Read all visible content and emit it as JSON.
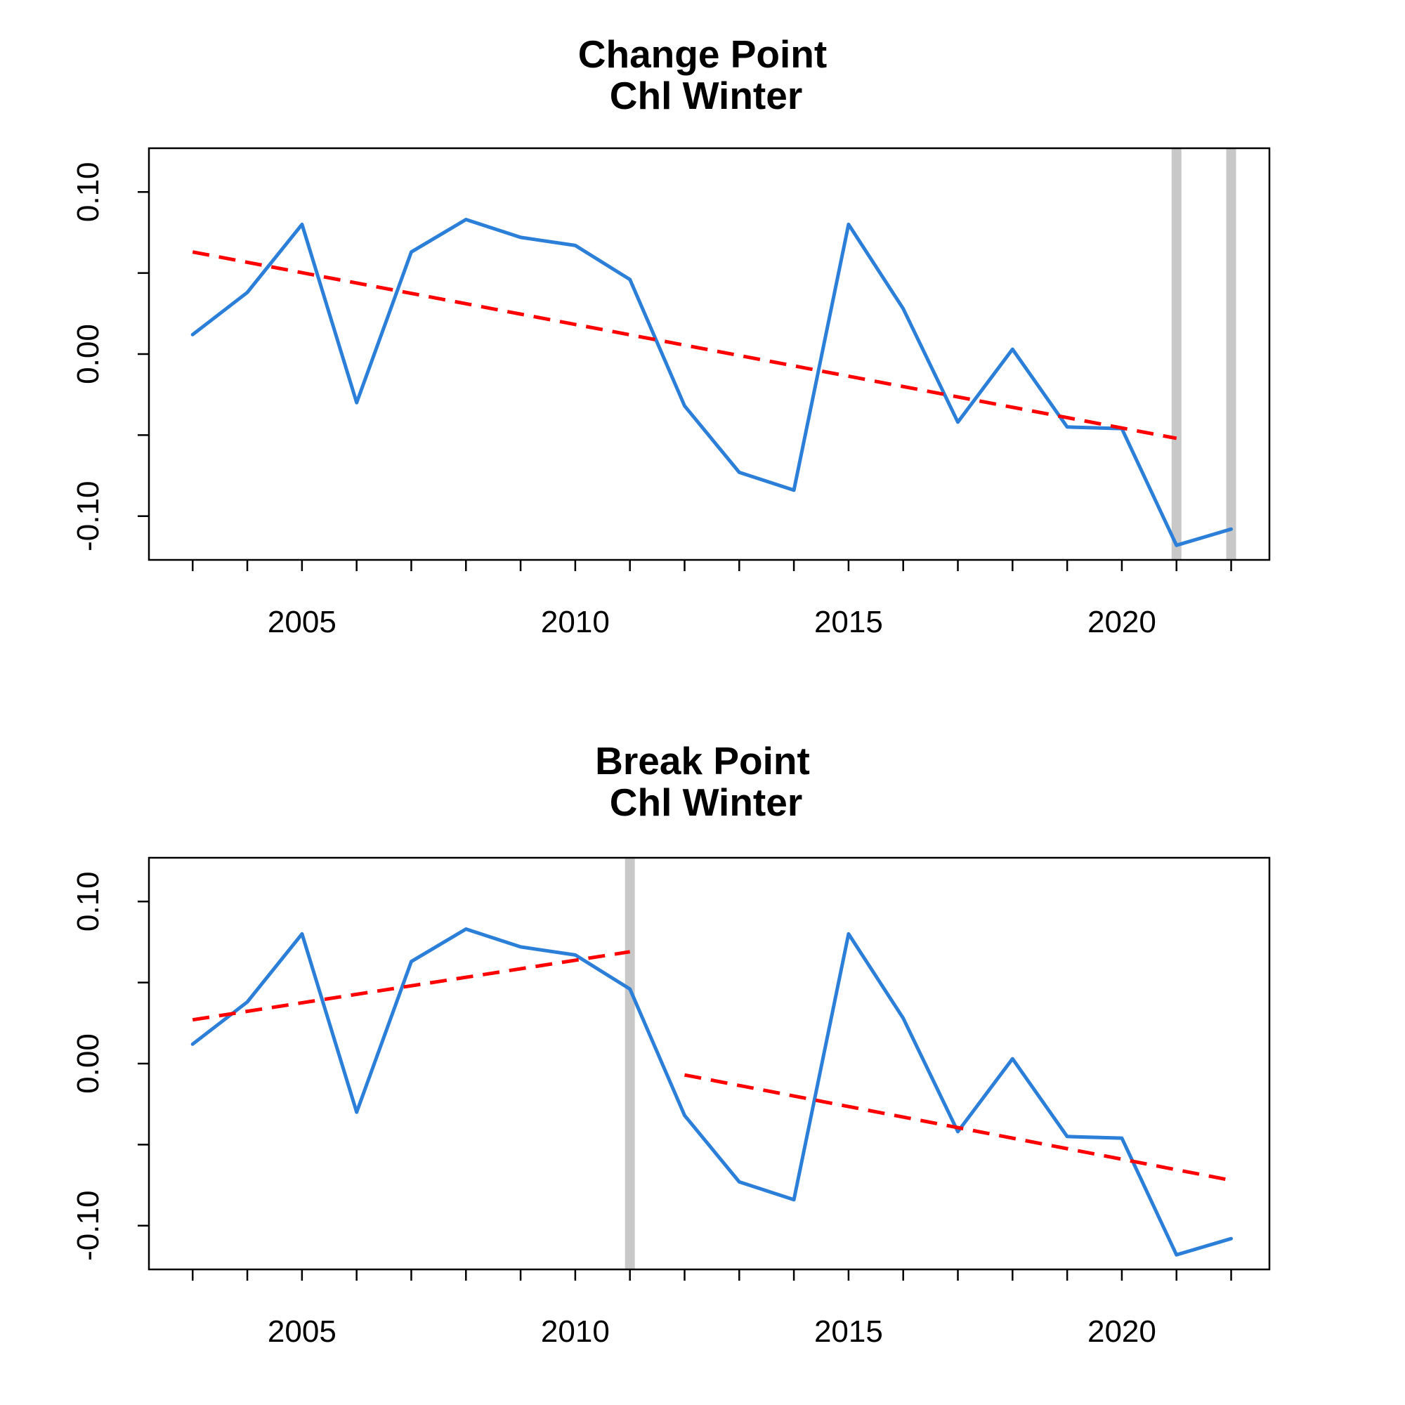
{
  "chart_data": [
    {
      "type": "line",
      "title": "Change Point",
      "subtitle": "Chl Winter",
      "xlabel": "",
      "ylabel": "",
      "xlim": [
        2002.2,
        2022.7
      ],
      "ylim": [
        -0.127,
        0.127
      ],
      "x_ticks": [
        2003,
        2004,
        2005,
        2006,
        2007,
        2008,
        2009,
        2010,
        2011,
        2012,
        2013,
        2014,
        2015,
        2016,
        2017,
        2018,
        2019,
        2020,
        2021,
        2022
      ],
      "x_tick_labels": [
        {
          "value": 2005,
          "label": "2005"
        },
        {
          "value": 2010,
          "label": "2010"
        },
        {
          "value": 2015,
          "label": "2015"
        },
        {
          "value": 2020,
          "label": "2020"
        }
      ],
      "y_ticks": [
        -0.1,
        -0.05,
        0.0,
        0.05,
        0.1
      ],
      "y_tick_labels": [
        {
          "value": -0.1,
          "label": "-0.10"
        },
        {
          "value": 0.0,
          "label": "0.00"
        },
        {
          "value": 0.1,
          "label": "0.10"
        }
      ],
      "grid": false,
      "series": [
        {
          "color": "#2b7fd8",
          "style": "solid",
          "x": [
            2003,
            2004,
            2005,
            2006,
            2007,
            2008,
            2009,
            2010,
            2011,
            2012,
            2013,
            2014,
            2015,
            2016,
            2017,
            2018,
            2019,
            2020,
            2021,
            2022
          ],
          "y": [
            0.012,
            0.038,
            0.08,
            -0.03,
            0.063,
            0.083,
            0.072,
            0.067,
            0.046,
            -0.032,
            -0.073,
            -0.084,
            0.08,
            0.028,
            -0.042,
            0.003,
            -0.045,
            -0.046,
            -0.118,
            -0.108
          ]
        }
      ],
      "trend_lines": [
        {
          "color": "#ff0000",
          "style": "dashed",
          "x": [
            2003,
            2021
          ],
          "y": [
            0.063,
            -0.052
          ]
        }
      ],
      "change_points": [
        2021,
        2022
      ],
      "change_point_color": "#c8c8c8"
    },
    {
      "type": "line",
      "title": "Break Point",
      "subtitle": "Chl Winter",
      "xlabel": "",
      "ylabel": "",
      "xlim": [
        2002.2,
        2022.7
      ],
      "ylim": [
        -0.127,
        0.127
      ],
      "x_ticks": [
        2003,
        2004,
        2005,
        2006,
        2007,
        2008,
        2009,
        2010,
        2011,
        2012,
        2013,
        2014,
        2015,
        2016,
        2017,
        2018,
        2019,
        2020,
        2021,
        2022
      ],
      "x_tick_labels": [
        {
          "value": 2005,
          "label": "2005"
        },
        {
          "value": 2010,
          "label": "2010"
        },
        {
          "value": 2015,
          "label": "2015"
        },
        {
          "value": 2020,
          "label": "2020"
        }
      ],
      "y_ticks": [
        -0.1,
        -0.05,
        0.0,
        0.05,
        0.1
      ],
      "y_tick_labels": [
        {
          "value": -0.1,
          "label": "-0.10"
        },
        {
          "value": 0.0,
          "label": "0.00"
        },
        {
          "value": 0.1,
          "label": "0.10"
        }
      ],
      "grid": false,
      "series": [
        {
          "color": "#2b7fd8",
          "style": "solid",
          "x": [
            2003,
            2004,
            2005,
            2006,
            2007,
            2008,
            2009,
            2010,
            2011,
            2012,
            2013,
            2014,
            2015,
            2016,
            2017,
            2018,
            2019,
            2020,
            2021,
            2022
          ],
          "y": [
            0.012,
            0.038,
            0.08,
            -0.03,
            0.063,
            0.083,
            0.072,
            0.067,
            0.046,
            -0.032,
            -0.073,
            -0.084,
            0.08,
            0.028,
            -0.042,
            0.003,
            -0.045,
            -0.046,
            -0.118,
            -0.108
          ]
        }
      ],
      "trend_lines": [
        {
          "color": "#ff0000",
          "style": "dashed",
          "x": [
            2003,
            2011
          ],
          "y": [
            0.027,
            0.069
          ]
        },
        {
          "color": "#ff0000",
          "style": "dashed",
          "x": [
            2012,
            2022
          ],
          "y": [
            -0.007,
            -0.072
          ]
        }
      ],
      "change_points": [
        2011
      ],
      "change_point_color": "#c8c8c8"
    }
  ]
}
